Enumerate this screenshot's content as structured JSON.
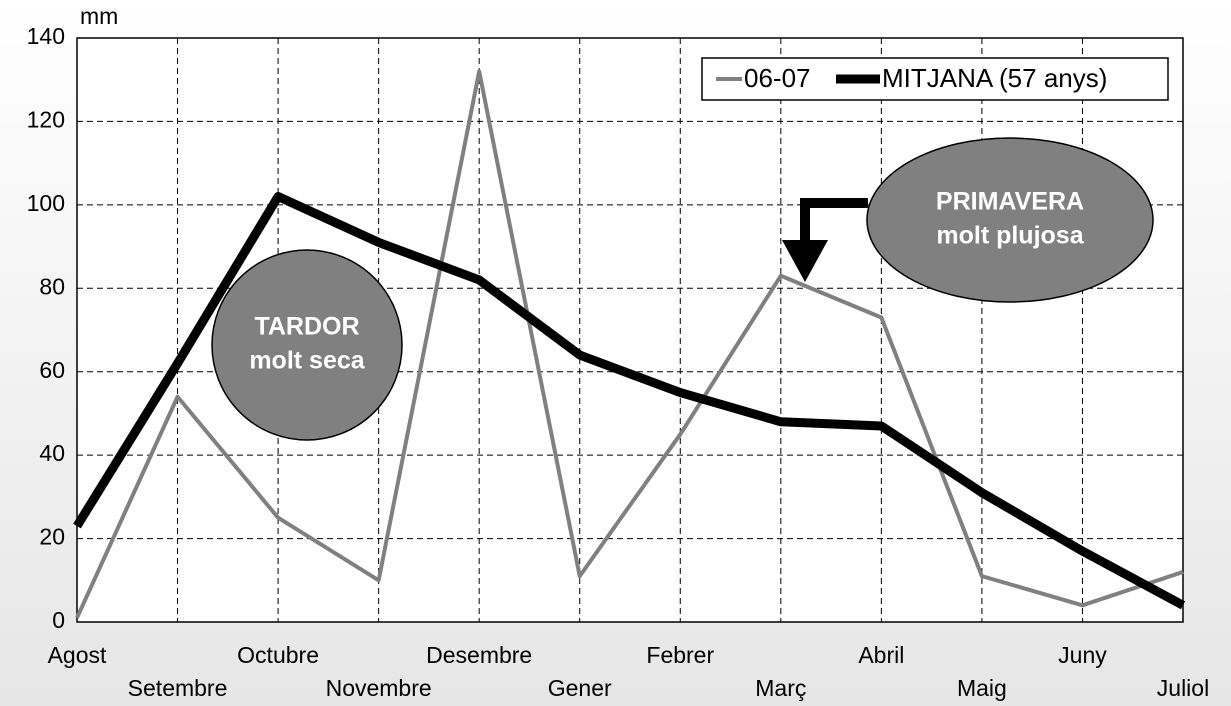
{
  "chart_data": {
    "type": "line",
    "y_label": "mm",
    "categories": [
      "Agost",
      "Setembre",
      "Octubre",
      "Novembre",
      "Desembre",
      "Gener",
      "Febrer",
      "Març",
      "Abril",
      "Maig",
      "Juny",
      "Juliol"
    ],
    "series": [
      {
        "name": "06-07",
        "color": "#808080",
        "values": [
          1,
          54,
          25,
          10,
          132,
          11,
          45,
          83,
          73,
          11,
          4,
          12
        ]
      },
      {
        "name": "MITJANA (57 anys)",
        "color": "#000000",
        "values": [
          23,
          62,
          102,
          91,
          82,
          64,
          55,
          48,
          47,
          31,
          17,
          4
        ]
      }
    ],
    "ylim": [
      0,
      140
    ],
    "yticks": [
      0,
      20,
      40,
      60,
      80,
      100,
      120,
      140
    ],
    "grid": true,
    "legend": "top-right",
    "annotations": [
      {
        "lines": [
          "TARDOR",
          "molt seca"
        ]
      },
      {
        "lines": [
          "PRIMAVERA",
          "molt plujosa"
        ]
      }
    ]
  }
}
